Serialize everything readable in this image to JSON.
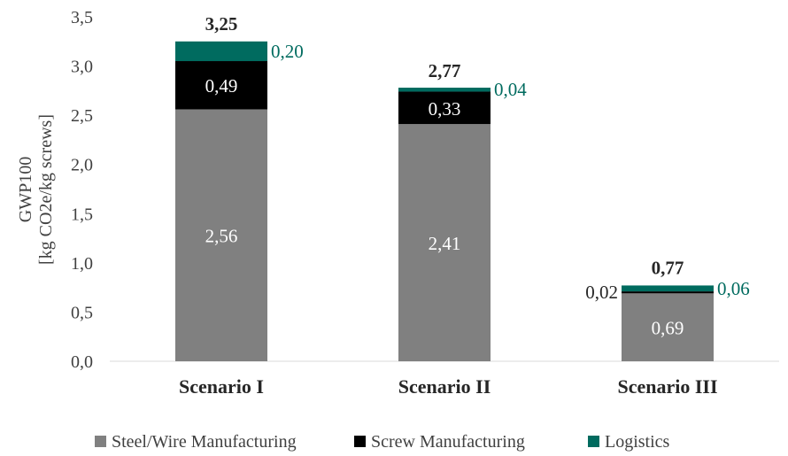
{
  "chart_data": {
    "type": "bar",
    "stacked": true,
    "categories": [
      "Scenario I",
      "Scenario II",
      "Scenario III"
    ],
    "series": [
      {
        "name": "Steel/Wire Manufacturing",
        "values": [
          2.56,
          2.41,
          0.69
        ],
        "labels": [
          "2,56",
          "2,41",
          "0,69"
        ],
        "color": "#808080",
        "label_color": "#ffffff"
      },
      {
        "name": "Screw Manufacturing",
        "values": [
          0.49,
          0.33,
          0.02
        ],
        "labels": [
          "0,49",
          "0,33",
          "0,02"
        ],
        "color": "#000000",
        "label_color": "#ffffff"
      },
      {
        "name": "Logistics",
        "values": [
          0.2,
          0.04,
          0.06
        ],
        "labels": [
          "0,20",
          "0,04",
          "0,06"
        ],
        "color": "#006b5f",
        "label_color": "#006b5f"
      }
    ],
    "totals": [
      3.25,
      2.77,
      0.77
    ],
    "total_labels": [
      "3,25",
      "2,77",
      "0,77"
    ],
    "ylabel": [
      "GWP100",
      "[kg CO2e/kg screws]"
    ],
    "xlabel": "",
    "ylim": [
      0,
      3.5
    ],
    "yticks": [
      0,
      0.5,
      1,
      1.5,
      2,
      2.5,
      3,
      3.5
    ],
    "ytick_labels": [
      "0,0",
      "0,5",
      "1,0",
      "1,5",
      "2,0",
      "2,5",
      "3,0",
      "3,5"
    ],
    "grid": false,
    "legend_position": "bottom"
  }
}
